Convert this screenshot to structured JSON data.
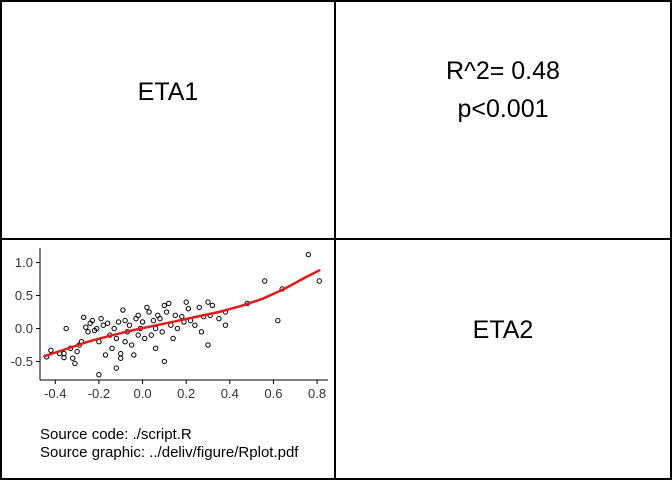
{
  "matrix": {
    "diag_top_left": "ETA1",
    "diag_bottom_right": "ETA2",
    "stats": {
      "r2": "R^2= 0.48",
      "p": "p<0.001"
    }
  },
  "captions": {
    "source_code": "Source code: ./script.R",
    "source_graphic": "Source graphic: ../deliv/figure/Rplot.pdf"
  },
  "chart_data": {
    "type": "scatter",
    "xlim": [
      -0.47,
      0.85
    ],
    "ylim": [
      -0.78,
      1.22
    ],
    "x_ticks": [
      -0.4,
      -0.2,
      0.0,
      0.2,
      0.4,
      0.6,
      0.8
    ],
    "x_tick_labels": [
      "-0.4",
      "-0.2",
      "0.0",
      "0.2",
      "0.4",
      "0.6",
      "0.8"
    ],
    "y_ticks": [
      -0.5,
      0.0,
      0.5,
      1.0
    ],
    "y_tick_labels": [
      "-0.5",
      "0.0",
      "0.5",
      "1.0"
    ],
    "grid": false,
    "points": [
      [
        -0.44,
        -0.43
      ],
      [
        -0.42,
        -0.33
      ],
      [
        -0.38,
        -0.38
      ],
      [
        -0.36,
        -0.44
      ],
      [
        -0.36,
        -0.38
      ],
      [
        -0.35,
        0.0
      ],
      [
        -0.33,
        -0.3
      ],
      [
        -0.32,
        -0.45
      ],
      [
        -0.31,
        -0.53
      ],
      [
        -0.3,
        -0.35
      ],
      [
        -0.29,
        -0.25
      ],
      [
        -0.28,
        -0.2
      ],
      [
        -0.27,
        0.17
      ],
      [
        -0.26,
        0.02
      ],
      [
        -0.25,
        -0.05
      ],
      [
        -0.24,
        0.08
      ],
      [
        -0.23,
        0.12
      ],
      [
        -0.22,
        -0.03
      ],
      [
        -0.21,
        0.0
      ],
      [
        -0.2,
        -0.2
      ],
      [
        -0.2,
        -0.7
      ],
      [
        -0.19,
        0.15
      ],
      [
        -0.18,
        0.05
      ],
      [
        -0.17,
        -0.4
      ],
      [
        -0.16,
        0.08
      ],
      [
        -0.15,
        -0.1
      ],
      [
        -0.14,
        -0.3
      ],
      [
        -0.13,
        0.0
      ],
      [
        -0.12,
        -0.6
      ],
      [
        -0.12,
        -0.15
      ],
      [
        -0.11,
        0.1
      ],
      [
        -0.1,
        -0.45
      ],
      [
        -0.1,
        -0.38
      ],
      [
        -0.09,
        0.28
      ],
      [
        -0.08,
        -0.2
      ],
      [
        -0.08,
        0.12
      ],
      [
        -0.07,
        -0.05
      ],
      [
        -0.06,
        0.05
      ],
      [
        -0.05,
        -0.25
      ],
      [
        -0.04,
        -0.4
      ],
      [
        -0.03,
        0.15
      ],
      [
        -0.02,
        0.2
      ],
      [
        -0.02,
        -0.1
      ],
      [
        -0.01,
        0.0
      ],
      [
        0.0,
        0.1
      ],
      [
        0.01,
        -0.15
      ],
      [
        0.02,
        0.32
      ],
      [
        0.03,
        0.25
      ],
      [
        0.04,
        -0.1
      ],
      [
        0.05,
        0.12
      ],
      [
        0.06,
        0.0
      ],
      [
        0.06,
        -0.3
      ],
      [
        0.07,
        0.2
      ],
      [
        0.08,
        0.15
      ],
      [
        0.09,
        -0.05
      ],
      [
        0.1,
        0.35
      ],
      [
        0.1,
        -0.5
      ],
      [
        0.11,
        0.25
      ],
      [
        0.12,
        0.38
      ],
      [
        0.13,
        0.05
      ],
      [
        0.14,
        -0.15
      ],
      [
        0.15,
        0.2
      ],
      [
        0.16,
        0.0
      ],
      [
        0.18,
        0.18
      ],
      [
        0.19,
        0.1
      ],
      [
        0.2,
        0.4
      ],
      [
        0.21,
        0.3
      ],
      [
        0.22,
        0.12
      ],
      [
        0.24,
        0.05
      ],
      [
        0.26,
        0.32
      ],
      [
        0.27,
        -0.05
      ],
      [
        0.28,
        0.18
      ],
      [
        0.3,
        0.4
      ],
      [
        0.3,
        -0.25
      ],
      [
        0.31,
        0.2
      ],
      [
        0.32,
        0.35
      ],
      [
        0.35,
        0.15
      ],
      [
        0.38,
        0.05
      ],
      [
        0.38,
        0.25
      ],
      [
        0.48,
        0.38
      ],
      [
        0.56,
        0.72
      ],
      [
        0.62,
        0.12
      ],
      [
        0.64,
        0.6
      ],
      [
        0.76,
        1.12
      ],
      [
        0.81,
        0.72
      ]
    ],
    "smooth_line": {
      "color": "#e41a1c",
      "x": [
        -0.45,
        -0.35,
        -0.25,
        -0.15,
        -0.05,
        0.05,
        0.15,
        0.25,
        0.35,
        0.45,
        0.55,
        0.65,
        0.75,
        0.81
      ],
      "y": [
        -0.42,
        -0.31,
        -0.2,
        -0.11,
        -0.03,
        0.04,
        0.11,
        0.18,
        0.25,
        0.34,
        0.45,
        0.6,
        0.78,
        0.88
      ]
    }
  }
}
